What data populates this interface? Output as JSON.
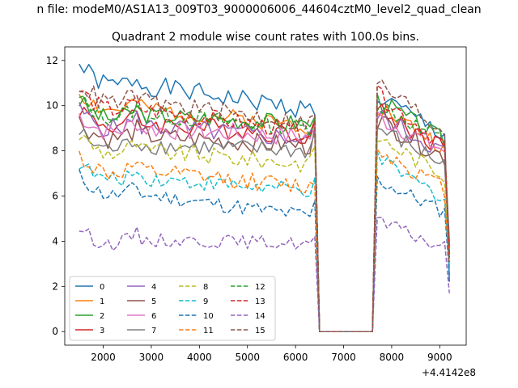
{
  "chart_data": {
    "type": "line",
    "suptitle": "n file: modeM0/AS1A13_009T03_9000006006_44604cztM0_level2_quad_clean",
    "title": "Quadrant 2 module wise count rates with 100.0s bins.",
    "xlabel": "",
    "ylabel": "",
    "x_offset_label": "+4.4142e8",
    "xlim": [
      1200,
      9550
    ],
    "ylim": [
      -0.6,
      12.6
    ],
    "xticks": [
      2000,
      3000,
      4000,
      5000,
      6000,
      7000,
      8000,
      9000
    ],
    "xtick_labels": [
      "2000",
      "3000",
      "4000",
      "5000",
      "6000",
      "7000",
      "8000",
      "9000"
    ],
    "yticks": [
      0,
      2,
      4,
      6,
      8,
      10,
      12
    ],
    "ytick_labels": [
      "0",
      "2",
      "4",
      "6",
      "8",
      "10",
      "12"
    ],
    "legend_position": "lower-left",
    "legend_columns": 4,
    "gap": {
      "start": 6500,
      "end": 7600,
      "value": 0
    },
    "segments": [
      {
        "start": 1500,
        "end": 6350
      },
      {
        "start": 7700,
        "end": 9200
      }
    ],
    "series": [
      {
        "name": "0",
        "color": "#1f77b4",
        "dash": "solid",
        "seg1_start": 11.8,
        "seg1_end": 9.6,
        "seg2_start": 10.4,
        "seg2_end": 8.6,
        "peak_6400": 9.6,
        "end_9200": 2.2,
        "noise": 0.45,
        "seed": 1
      },
      {
        "name": "1",
        "color": "#ff7f0e",
        "dash": "solid",
        "seg1_start": 10.6,
        "seg1_end": 8.9,
        "seg2_start": 10.0,
        "seg2_end": 8.0,
        "peak_6400": 9.4,
        "end_9200": 2.8,
        "noise": 0.4,
        "seed": 2
      },
      {
        "name": "2",
        "color": "#2ca02c",
        "dash": "solid",
        "seg1_start": 10.2,
        "seg1_end": 9.0,
        "seg2_start": 10.3,
        "seg2_end": 8.3,
        "peak_6400": 9.5,
        "end_9200": 3.5,
        "noise": 0.4,
        "seed": 3
      },
      {
        "name": "3",
        "color": "#d62728",
        "dash": "solid",
        "seg1_start": 9.9,
        "seg1_end": 8.5,
        "seg2_start": 9.8,
        "seg2_end": 8.0,
        "peak_6400": 9.3,
        "end_9200": 3.8,
        "noise": 0.45,
        "seed": 4
      },
      {
        "name": "4",
        "color": "#9467bd",
        "dash": "solid",
        "seg1_start": 9.8,
        "seg1_end": 8.3,
        "seg2_start": 9.6,
        "seg2_end": 7.8,
        "peak_6400": 9.2,
        "end_9200": 4.0,
        "noise": 0.45,
        "seed": 5
      },
      {
        "name": "5",
        "color": "#8c564b",
        "dash": "solid",
        "seg1_start": 9.3,
        "seg1_end": 8.0,
        "seg2_start": 9.4,
        "seg2_end": 7.6,
        "peak_6400": 9.0,
        "end_9200": 3.9,
        "noise": 0.45,
        "seed": 6
      },
      {
        "name": "6",
        "color": "#e377c2",
        "dash": "solid",
        "seg1_start": 9.6,
        "seg1_end": 8.4,
        "seg2_start": 9.5,
        "seg2_end": 7.9,
        "peak_6400": 9.1,
        "end_9200": 3.6,
        "noise": 0.45,
        "seed": 7
      },
      {
        "name": "7",
        "color": "#7f7f7f",
        "dash": "solid",
        "seg1_start": 8.8,
        "seg1_end": 7.8,
        "seg2_start": 9.0,
        "seg2_end": 7.3,
        "peak_6400": 8.8,
        "end_9200": 3.4,
        "noise": 0.4,
        "seed": 8
      },
      {
        "name": "8",
        "color": "#bcbd22",
        "dash": "dashed",
        "seg1_start": 8.7,
        "seg1_end": 7.2,
        "seg2_start": 8.6,
        "seg2_end": 6.8,
        "peak_6400": 8.2,
        "end_9200": 3.2,
        "noise": 0.4,
        "seed": 9
      },
      {
        "name": "9",
        "color": "#17becf",
        "dash": "dashed",
        "seg1_start": 7.5,
        "seg1_end": 6.0,
        "seg2_start": 7.6,
        "seg2_end": 5.8,
        "peak_6400": 6.8,
        "end_9200": 2.9,
        "noise": 0.35,
        "seed": 10
      },
      {
        "name": "10",
        "color": "#1f77b4",
        "dash": "dashed",
        "seg1_start": 6.9,
        "seg1_end": 4.9,
        "seg2_start": 6.7,
        "seg2_end": 5.2,
        "peak_6400": 5.8,
        "end_9200": 2.5,
        "noise": 0.35,
        "seed": 11
      },
      {
        "name": "11",
        "color": "#ff7f0e",
        "dash": "dashed",
        "seg1_start": 7.8,
        "seg1_end": 6.2,
        "seg2_start": 8.1,
        "seg2_end": 6.2,
        "peak_6400": 6.5,
        "end_9200": 3.0,
        "noise": 0.4,
        "seed": 12
      },
      {
        "name": "12",
        "color": "#2ca02c",
        "dash": "dashed",
        "seg1_start": 10.3,
        "seg1_end": 8.8,
        "seg2_start": 10.1,
        "seg2_end": 8.3,
        "peak_6400": 9.4,
        "end_9200": 3.7,
        "noise": 0.4,
        "seed": 13
      },
      {
        "name": "13",
        "color": "#d62728",
        "dash": "dashed",
        "seg1_start": 10.7,
        "seg1_end": 8.6,
        "seg2_start": 10.5,
        "seg2_end": 8.1,
        "peak_6400": 9.3,
        "end_9200": 3.3,
        "noise": 0.4,
        "seed": 14
      },
      {
        "name": "14",
        "color": "#9467bd",
        "dash": "dashed",
        "seg1_start": 4.6,
        "seg1_end": 3.7,
        "seg2_start": 4.9,
        "seg2_end": 3.6,
        "peak_6400": 4.2,
        "end_9200": 1.7,
        "noise": 0.3,
        "seed": 15
      },
      {
        "name": "15",
        "color": "#8c564b",
        "dash": "dashed",
        "seg1_start": 11.0,
        "seg1_end": 9.0,
        "seg2_start": 11.0,
        "seg2_end": 8.7,
        "peak_6400": 9.6,
        "end_9200": 3.1,
        "noise": 0.45,
        "seed": 16
      }
    ]
  }
}
